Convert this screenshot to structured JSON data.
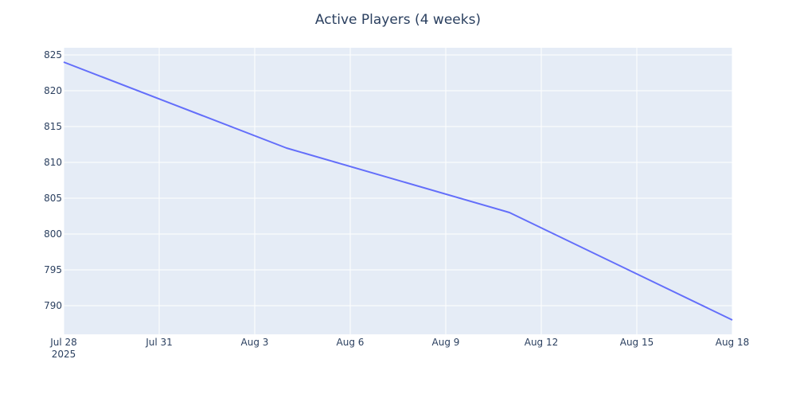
{
  "chart_data": {
    "type": "line",
    "title": "Active Players (4 weeks)",
    "xlabel": "",
    "ylabel": "",
    "x": [
      "2025-07-28",
      "2025-08-04",
      "2025-08-11",
      "2025-08-18"
    ],
    "series": [
      {
        "values": [
          824,
          812,
          803,
          788
        ]
      }
    ],
    "xlim": [
      "2025-07-28",
      "2025-08-18"
    ],
    "ylim": [
      786,
      826
    ],
    "x_ticks": [
      {
        "date": "2025-07-28",
        "label": "Jul 28",
        "sublabel": "2025"
      },
      {
        "date": "2025-07-31",
        "label": "Jul 31"
      },
      {
        "date": "2025-08-03",
        "label": "Aug 3"
      },
      {
        "date": "2025-08-06",
        "label": "Aug 6"
      },
      {
        "date": "2025-08-09",
        "label": "Aug 9"
      },
      {
        "date": "2025-08-12",
        "label": "Aug 12"
      },
      {
        "date": "2025-08-15",
        "label": "Aug 15"
      },
      {
        "date": "2025-08-18",
        "label": "Aug 18"
      }
    ],
    "y_ticks": [
      790,
      795,
      800,
      805,
      810,
      815,
      820,
      825
    ],
    "grid": true,
    "legend": "none",
    "colors": {
      "line": "#636efa",
      "plot_bg": "#e5ecf6",
      "grid": "#ffffff",
      "text": "#2a3f5f"
    }
  }
}
